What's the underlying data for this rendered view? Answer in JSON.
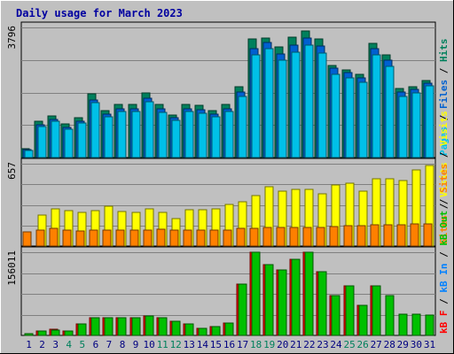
{
  "colors": {
    "background": "#c0c0c0",
    "panel": "#c0c0c0",
    "title": "#0000a0",
    "hits": "#00805c",
    "files": "#0060d0",
    "pages": "#00c0e8",
    "visits": "#ffff00",
    "sites": "#ff8000",
    "kb_total": "#ff0000",
    "kb_in": "#0080ff",
    "kb_out": "#00c000",
    "weekend_day": "#00805c",
    "weekday_day": "#000080"
  },
  "chart_data": {
    "type": "bar",
    "title": "Daily usage for March 2023",
    "categories": [
      "1",
      "2",
      "3",
      "4",
      "5",
      "6",
      "7",
      "8",
      "9",
      "10",
      "11",
      "12",
      "13",
      "14",
      "15",
      "16",
      "17",
      "18",
      "19",
      "20",
      "21",
      "22",
      "23",
      "24",
      "25",
      "26",
      "27",
      "28",
      "29",
      "30",
      "31"
    ],
    "weekend_days": [
      "4",
      "5",
      "11",
      "12",
      "18",
      "19",
      "25",
      "26"
    ],
    "panels": [
      {
        "id": "hits_files_pages",
        "max_label": "3796",
        "ylim": [
          0,
          3796
        ],
        "legend": [
          {
            "text": "Pages",
            "color": "#00c0e8"
          },
          {
            "text": "Files",
            "color": "#0060d0"
          },
          {
            "text": "Hits",
            "color": "#00805c"
          }
        ],
        "series": [
          {
            "name": "Hits",
            "values": [
              250,
              1050,
              1220,
              970,
              1160,
              1850,
              1370,
              1550,
              1550,
              1880,
              1540,
              1250,
              1550,
              1520,
              1370,
              1550,
              2060,
              3450,
              3480,
              3230,
              3500,
              3700,
              3450,
              2680,
              2560,
              2440,
              3330,
              2990,
              2020,
              2060,
              2240
            ]
          },
          {
            "name": "Files",
            "values": [
              230,
              960,
              1120,
              880,
              1070,
              1690,
              1260,
              1430,
              1430,
              1720,
              1410,
              1150,
              1420,
              1390,
              1260,
              1430,
              1900,
              3170,
              3360,
              3030,
              3270,
              3480,
              3250,
              2600,
              2480,
              2330,
              3170,
              2830,
              1900,
              1980,
              2180
            ]
          },
          {
            "name": "Pages",
            "values": [
              210,
              900,
              1050,
              820,
              1000,
              1590,
              1180,
              1330,
              1340,
              1620,
              1320,
              1080,
              1330,
              1300,
              1180,
              1340,
              1790,
              2990,
              3180,
              2850,
              3080,
              3290,
              3050,
              2440,
              2330,
              2190,
              2990,
              2650,
              1790,
              1880,
              2090
            ]
          }
        ]
      },
      {
        "id": "visits_sites",
        "max_label": "657",
        "ylim": [
          0,
          657
        ],
        "legend": [
          {
            "text": "Sites",
            "color": "#ff8000"
          },
          {
            "text": "Visits",
            "color": "#ffff00"
          }
        ],
        "series": [
          {
            "name": "Visits",
            "values": [
              0,
              250,
              300,
              280,
              270,
              280,
              320,
              275,
              265,
              300,
              270,
              220,
              290,
              290,
              300,
              330,
              350,
              400,
              470,
              440,
              450,
              450,
              420,
              490,
              500,
              440,
              540,
              540,
              520,
              610,
              640
            ]
          },
          {
            "name": "Sites",
            "values": [
              110,
              130,
              140,
              130,
              120,
              125,
              130,
              130,
              130,
              130,
              135,
              130,
              125,
              125,
              130,
              125,
              140,
              140,
              150,
              150,
              150,
              150,
              150,
              155,
              160,
              165,
              170,
              170,
              170,
              175,
              180
            ]
          }
        ]
      },
      {
        "id": "kbytes",
        "max_label": "156011",
        "ylim": [
          0,
          156011
        ],
        "legend": [
          {
            "text": "kB F",
            "color": "#ff0000"
          },
          {
            "text": "kB In",
            "color": "#0080ff"
          },
          {
            "text": "kB Out",
            "color": "#00c000"
          },
          {
            "text": "Sites",
            "color": "#ff8000"
          },
          {
            "text": "Visits",
            "color": "#ffff00"
          }
        ],
        "series": [
          {
            "name": "kB F",
            "values": [
              0,
              9000,
              11000,
              9000,
              22000,
              33000,
              33000,
              33000,
              33000,
              36000,
              33000,
              26000,
              22000,
              13000,
              17000,
              24000,
              96000,
              156000,
              132000,
              122000,
              143000,
              156000,
              120000,
              74000,
              93000,
              56000,
              93000,
              0,
              0,
              0,
              0
            ]
          },
          {
            "name": "kB Out",
            "values": [
              3000,
              9000,
              10000,
              9000,
              22000,
              33000,
              33000,
              33000,
              33000,
              36000,
              33000,
              26000,
              22000,
              13000,
              17000,
              24000,
              96000,
              156000,
              132000,
              122000,
              143000,
              156000,
              120000,
              74000,
              93000,
              56000,
              93000,
              74000,
              40000,
              40000,
              38000
            ]
          }
        ]
      }
    ]
  }
}
